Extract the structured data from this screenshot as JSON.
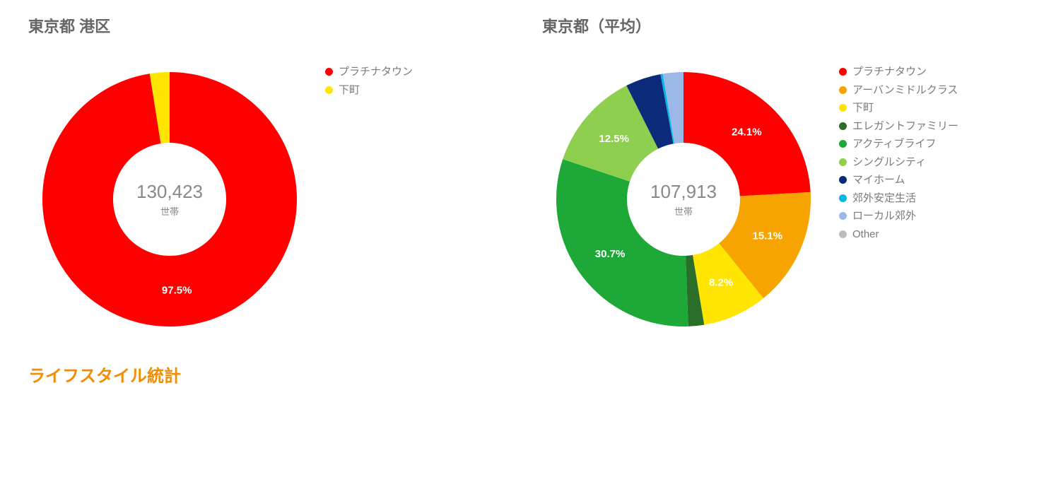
{
  "left_chart": {
    "title": "東京都 港区",
    "type": "donut",
    "center_value": "130,423",
    "center_unit": "世帯",
    "outer_radius": 180,
    "inner_radius": 80,
    "label_radius": 130,
    "start_angle_deg": -90,
    "background_color": "#ffffff",
    "label_color": "#ffffff",
    "label_fontsize": 15,
    "title_fontsize": 22,
    "title_color": "#666666",
    "center_value_fontsize": 26,
    "center_value_color": "#888888",
    "slices": [
      {
        "label": "プラチナタウン",
        "value": 97.5,
        "color": "#ff0000",
        "show_percent": true
      },
      {
        "label": "下町",
        "value": 2.5,
        "color": "#ffe600",
        "show_percent": false
      }
    ]
  },
  "right_chart": {
    "title": "東京都（平均）",
    "type": "donut",
    "center_value": "107,913",
    "center_unit": "世帯",
    "outer_radius": 180,
    "inner_radius": 80,
    "label_radius": 130,
    "start_angle_deg": -90,
    "background_color": "#ffffff",
    "label_color": "#ffffff",
    "label_fontsize": 15,
    "title_fontsize": 22,
    "title_color": "#666666",
    "center_value_fontsize": 26,
    "center_value_color": "#888888",
    "slices": [
      {
        "label": "プラチナタウン",
        "value": 24.1,
        "color": "#ff0000",
        "show_percent": true
      },
      {
        "label": "アーバンミドルクラス",
        "value": 15.1,
        "color": "#f7a400",
        "show_percent": true
      },
      {
        "label": "下町",
        "value": 8.2,
        "color": "#ffe600",
        "show_percent": true
      },
      {
        "label": "エレガントファミリー",
        "value": 2.0,
        "color": "#2a6e2a",
        "show_percent": false
      },
      {
        "label": "アクティブライフ",
        "value": 30.7,
        "color": "#1ea838",
        "show_percent": true
      },
      {
        "label": "シングルシティ",
        "value": 12.5,
        "color": "#8ecf4f",
        "show_percent": true
      },
      {
        "label": "マイホーム",
        "value": 4.5,
        "color": "#0b2b7a",
        "show_percent": false
      },
      {
        "label": "郊外安定生活",
        "value": 0.3,
        "color": "#00b7e6",
        "show_percent": false
      },
      {
        "label": "ローカル郊外",
        "value": 2.6,
        "color": "#9cb8e8",
        "show_percent": false
      },
      {
        "label": "Other",
        "value": 0.0,
        "color": "#bdbdbd",
        "show_percent": false
      }
    ]
  },
  "section_title": "ライフスタイル統計",
  "section_title_color": "#f28c00",
  "section_title_fontsize": 24
}
